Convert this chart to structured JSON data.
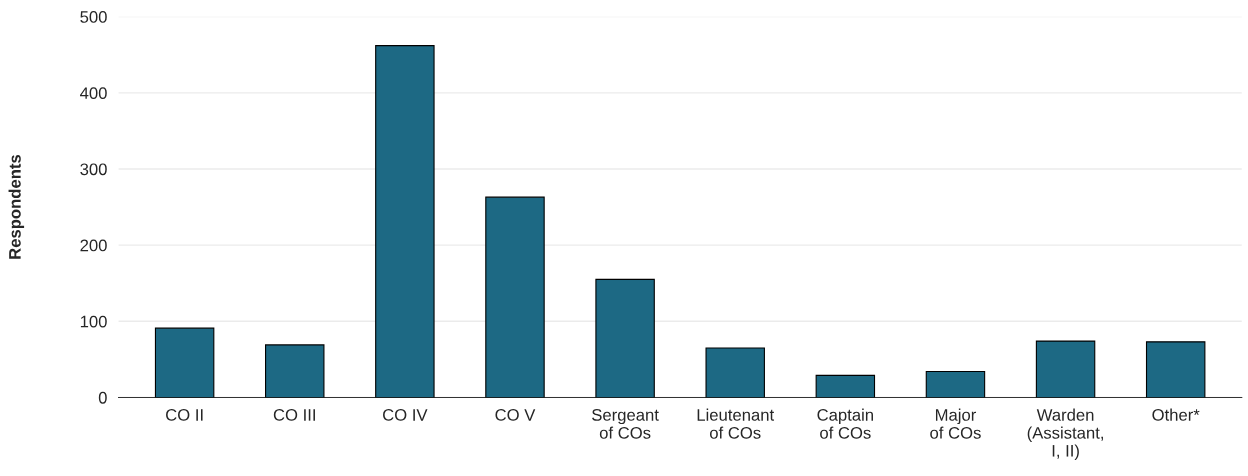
{
  "chart_data": {
    "type": "bar",
    "ylabel": "Respondents",
    "categories": [
      "CO II",
      "CO III",
      "CO IV",
      "CO V",
      "Sergeant\nof COs",
      "Lieutenant\nof COs",
      "Captain\nof COs",
      "Major\nof COs",
      "Warden\n(Assistant,\nI, II)",
      "Other*"
    ],
    "values": [
      91,
      69,
      462,
      263,
      155,
      65,
      29,
      34,
      74,
      73
    ],
    "color": "#1d6984",
    "ylim": [
      0,
      500
    ],
    "yticks": [
      0,
      100,
      200,
      300,
      400,
      500
    ],
    "grid": "y"
  }
}
